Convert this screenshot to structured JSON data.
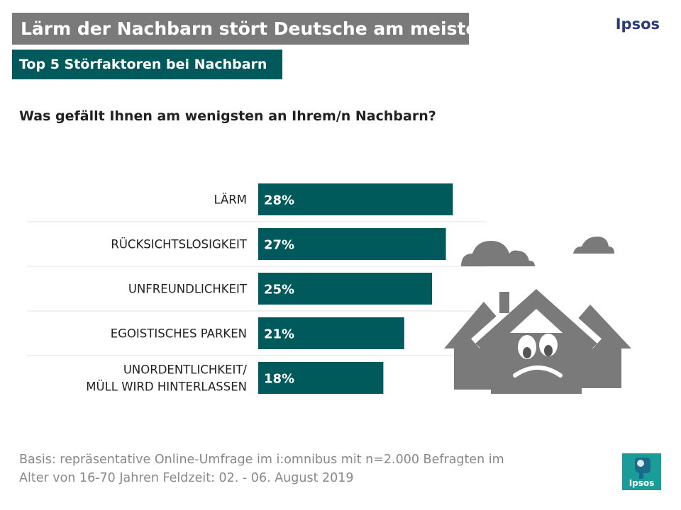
{
  "header": {
    "title": "Lärm der Nachbarn stört Deutsche am meisten",
    "subtitle": "Top 5 Störfaktoren bei Nachbarn",
    "brand": "Ipsos"
  },
  "question": "Was gefällt Ihnen am wenigsten an Ihrem/n Nachbarn?",
  "chart_data": {
    "type": "bar",
    "orientation": "horizontal",
    "categories": [
      [
        "LÄRM"
      ],
      [
        "RÜCKSICHTSLOSIGKEIT"
      ],
      [
        "UNFREUNDLICHKEIT"
      ],
      [
        "EGOISTISCHES PARKEN"
      ],
      [
        "UNORDENTLICHKEIT/",
        "MÜLL WIRD HINTERLASSEN"
      ]
    ],
    "values": [
      28,
      27,
      25,
      21,
      18
    ],
    "value_labels": [
      "28%",
      "27%",
      "25%",
      "21%",
      "18%"
    ],
    "unit": "%",
    "bar_color": "#005a5b",
    "label_color": "#ffffff"
  },
  "footnote": {
    "line1": "Basis: repräsentative Online-Umfrage im i:omnibus mit n=2.000 Befragten im",
    "line2": "Alter von 16-70 Jahren  Feldzeit: 02. - 06. August 2019"
  },
  "logo": {
    "text": "Ipsos",
    "color": "#1c9c99"
  },
  "illustration": {
    "icon": "sad-houses-with-clouds-icon",
    "color": "#7a7a7a"
  }
}
